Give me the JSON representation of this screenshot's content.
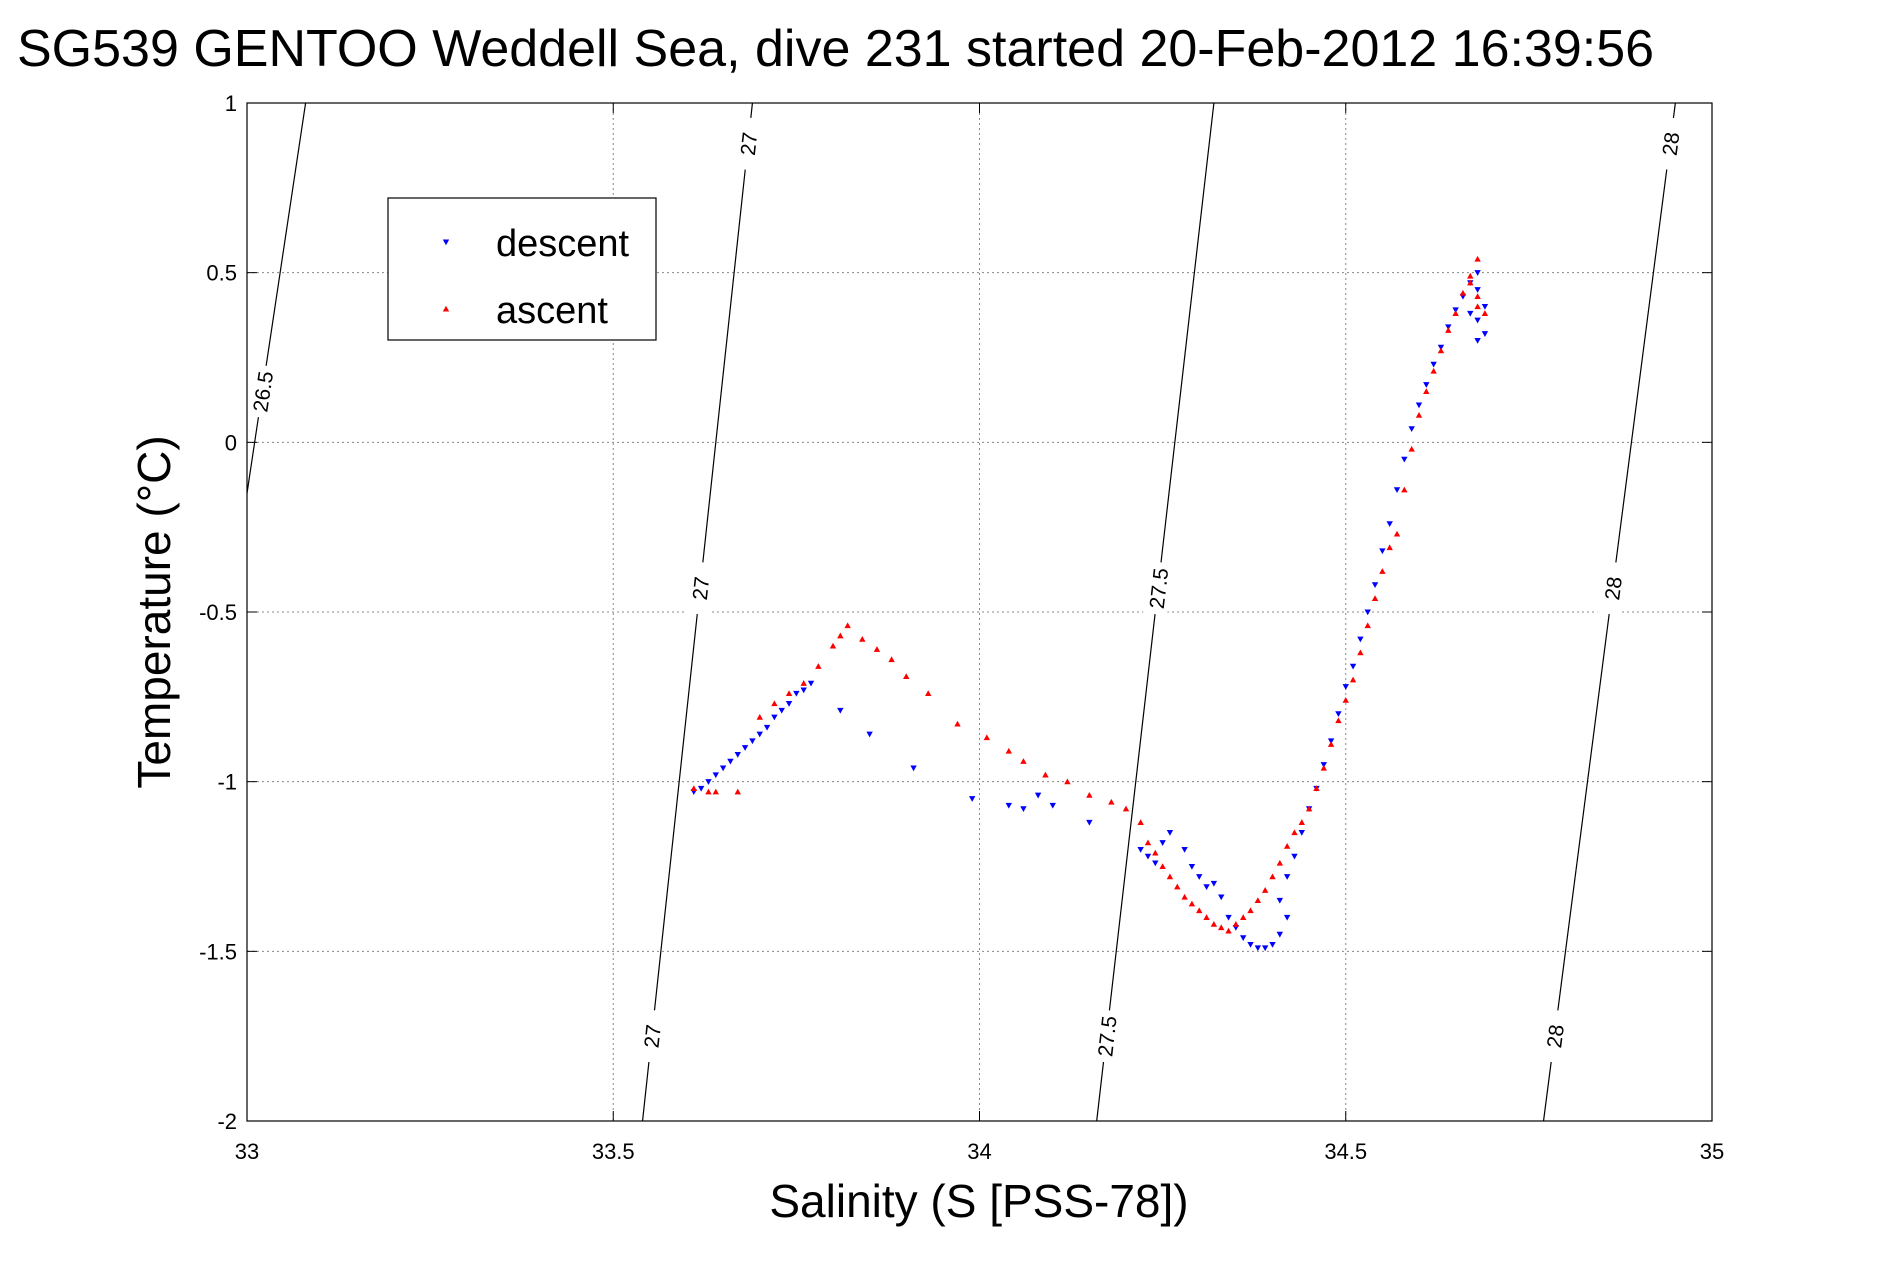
{
  "chart_data": {
    "type": "scatter",
    "title": "SG539 GENTOO Weddell Sea, dive 231 started 20-Feb-2012 16:39:56",
    "xlabel": "Salinity (S [PSS-78])",
    "ylabel": "Temperature (°C)",
    "xlim": [
      33,
      35
    ],
    "ylim": [
      -2,
      1
    ],
    "xticks": [
      33,
      33.5,
      34,
      34.5,
      35
    ],
    "xtick_labels": [
      "33",
      "33.5",
      "34",
      "34.5",
      "35"
    ],
    "yticks": [
      -2,
      -1.5,
      -1,
      -0.5,
      0,
      0.5,
      1
    ],
    "ytick_labels": [
      "-2",
      "-1.5",
      "-1",
      "-0.5",
      "0",
      "0.5",
      "1"
    ],
    "grid": true,
    "legend_position": "upper-left",
    "series": [
      {
        "name": "descent",
        "color": "#0000ff",
        "marker": "triangle-down",
        "points": [
          [
            33.61,
            -1.03
          ],
          [
            33.62,
            -1.02
          ],
          [
            33.63,
            -1.0
          ],
          [
            33.64,
            -0.98
          ],
          [
            33.65,
            -0.96
          ],
          [
            33.66,
            -0.94
          ],
          [
            33.67,
            -0.92
          ],
          [
            33.68,
            -0.9
          ],
          [
            33.69,
            -0.88
          ],
          [
            33.7,
            -0.86
          ],
          [
            33.71,
            -0.84
          ],
          [
            33.72,
            -0.81
          ],
          [
            33.73,
            -0.79
          ],
          [
            33.74,
            -0.77
          ],
          [
            33.75,
            -0.74
          ],
          [
            33.76,
            -0.73
          ],
          [
            33.77,
            -0.71
          ],
          [
            33.81,
            -0.79
          ],
          [
            33.85,
            -0.86
          ],
          [
            33.91,
            -0.96
          ],
          [
            33.99,
            -1.05
          ],
          [
            34.04,
            -1.07
          ],
          [
            34.06,
            -1.08
          ],
          [
            34.08,
            -1.04
          ],
          [
            34.1,
            -1.07
          ],
          [
            34.15,
            -1.12
          ],
          [
            34.22,
            -1.2
          ],
          [
            34.23,
            -1.22
          ],
          [
            34.24,
            -1.24
          ],
          [
            34.25,
            -1.18
          ],
          [
            34.26,
            -1.15
          ],
          [
            34.28,
            -1.2
          ],
          [
            34.29,
            -1.25
          ],
          [
            34.3,
            -1.28
          ],
          [
            34.31,
            -1.31
          ],
          [
            34.32,
            -1.3
          ],
          [
            34.33,
            -1.34
          ],
          [
            34.34,
            -1.4
          ],
          [
            34.35,
            -1.43
          ],
          [
            34.36,
            -1.46
          ],
          [
            34.37,
            -1.48
          ],
          [
            34.38,
            -1.49
          ],
          [
            34.39,
            -1.49
          ],
          [
            34.4,
            -1.48
          ],
          [
            34.41,
            -1.45
          ],
          [
            34.42,
            -1.4
          ],
          [
            34.41,
            -1.35
          ],
          [
            34.42,
            -1.28
          ],
          [
            34.43,
            -1.22
          ],
          [
            34.44,
            -1.15
          ],
          [
            34.45,
            -1.08
          ],
          [
            34.46,
            -1.02
          ],
          [
            34.47,
            -0.95
          ],
          [
            34.48,
            -0.88
          ],
          [
            34.49,
            -0.8
          ],
          [
            34.5,
            -0.72
          ],
          [
            34.51,
            -0.66
          ],
          [
            34.52,
            -0.58
          ],
          [
            34.53,
            -0.5
          ],
          [
            34.54,
            -0.42
          ],
          [
            34.55,
            -0.32
          ],
          [
            34.56,
            -0.24
          ],
          [
            34.57,
            -0.14
          ],
          [
            34.58,
            -0.05
          ],
          [
            34.59,
            0.04
          ],
          [
            34.6,
            0.11
          ],
          [
            34.61,
            0.17
          ],
          [
            34.62,
            0.23
          ],
          [
            34.63,
            0.28
          ],
          [
            34.64,
            0.34
          ],
          [
            34.65,
            0.39
          ],
          [
            34.66,
            0.43
          ],
          [
            34.67,
            0.47
          ],
          [
            34.68,
            0.5
          ],
          [
            34.68,
            0.45
          ],
          [
            34.69,
            0.4
          ],
          [
            34.68,
            0.36
          ],
          [
            34.69,
            0.32
          ],
          [
            34.68,
            0.3
          ],
          [
            34.67,
            0.38
          ]
        ]
      },
      {
        "name": "ascent",
        "color": "#ff0000",
        "marker": "triangle-up",
        "points": [
          [
            33.61,
            -1.02
          ],
          [
            33.63,
            -1.03
          ],
          [
            33.64,
            -1.03
          ],
          [
            33.67,
            -1.03
          ],
          [
            33.7,
            -0.81
          ],
          [
            33.72,
            -0.77
          ],
          [
            33.74,
            -0.74
          ],
          [
            33.76,
            -0.71
          ],
          [
            33.78,
            -0.66
          ],
          [
            33.8,
            -0.6
          ],
          [
            33.81,
            -0.57
          ],
          [
            33.82,
            -0.54
          ],
          [
            33.84,
            -0.58
          ],
          [
            33.86,
            -0.61
          ],
          [
            33.88,
            -0.64
          ],
          [
            33.9,
            -0.69
          ],
          [
            33.93,
            -0.74
          ],
          [
            33.97,
            -0.83
          ],
          [
            34.01,
            -0.87
          ],
          [
            34.04,
            -0.91
          ],
          [
            34.06,
            -0.94
          ],
          [
            34.09,
            -0.98
          ],
          [
            34.12,
            -1.0
          ],
          [
            34.15,
            -1.04
          ],
          [
            34.18,
            -1.06
          ],
          [
            34.2,
            -1.08
          ],
          [
            34.22,
            -1.12
          ],
          [
            34.23,
            -1.18
          ],
          [
            34.24,
            -1.21
          ],
          [
            34.25,
            -1.25
          ],
          [
            34.26,
            -1.28
          ],
          [
            34.27,
            -1.31
          ],
          [
            34.28,
            -1.34
          ],
          [
            34.29,
            -1.36
          ],
          [
            34.3,
            -1.38
          ],
          [
            34.31,
            -1.4
          ],
          [
            34.32,
            -1.42
          ],
          [
            34.33,
            -1.43
          ],
          [
            34.34,
            -1.44
          ],
          [
            34.35,
            -1.42
          ],
          [
            34.36,
            -1.4
          ],
          [
            34.37,
            -1.38
          ],
          [
            34.38,
            -1.35
          ],
          [
            34.39,
            -1.32
          ],
          [
            34.4,
            -1.28
          ],
          [
            34.41,
            -1.24
          ],
          [
            34.42,
            -1.19
          ],
          [
            34.43,
            -1.15
          ],
          [
            34.44,
            -1.12
          ],
          [
            34.45,
            -1.08
          ],
          [
            34.46,
            -1.02
          ],
          [
            34.47,
            -0.96
          ],
          [
            34.48,
            -0.89
          ],
          [
            34.49,
            -0.82
          ],
          [
            34.5,
            -0.76
          ],
          [
            34.51,
            -0.7
          ],
          [
            34.52,
            -0.62
          ],
          [
            34.53,
            -0.54
          ],
          [
            34.54,
            -0.46
          ],
          [
            34.55,
            -0.38
          ],
          [
            34.56,
            -0.31
          ],
          [
            34.57,
            -0.27
          ],
          [
            34.58,
            -0.14
          ],
          [
            34.59,
            -0.02
          ],
          [
            34.6,
            0.08
          ],
          [
            34.61,
            0.15
          ],
          [
            34.62,
            0.21
          ],
          [
            34.63,
            0.27
          ],
          [
            34.64,
            0.33
          ],
          [
            34.65,
            0.38
          ],
          [
            34.66,
            0.44
          ],
          [
            34.67,
            0.49
          ],
          [
            34.68,
            0.54
          ],
          [
            34.67,
            0.47
          ],
          [
            34.68,
            0.43
          ],
          [
            34.69,
            0.38
          ],
          [
            34.68,
            0.4
          ]
        ]
      }
    ],
    "contours": [
      {
        "label": "26.5",
        "points": [
          [
            33.0,
            -0.15
          ],
          [
            33.08,
            1.0
          ]
        ],
        "label_positions": [
          [
            33.03,
            0.15
          ]
        ]
      },
      {
        "label": "27",
        "points": [
          [
            33.54,
            -2.0
          ],
          [
            33.69,
            1.0
          ]
        ],
        "label_positions": [
          [
            33.69,
            0.88
          ],
          [
            33.62,
            -0.43
          ],
          [
            33.56,
            -1.75
          ]
        ]
      },
      {
        "label": "27.5",
        "points": [
          [
            34.16,
            -2.0
          ],
          [
            34.32,
            1.0
          ]
        ],
        "label_positions": [
          [
            34.23,
            -0.43
          ],
          [
            34.17,
            -1.75
          ]
        ]
      },
      {
        "label": "28",
        "points": [
          [
            34.77,
            -2.0
          ],
          [
            34.95,
            1.0
          ]
        ],
        "label_positions": [
          [
            34.93,
            0.88
          ],
          [
            34.86,
            -0.43
          ],
          [
            34.79,
            -1.75
          ]
        ]
      }
    ]
  }
}
